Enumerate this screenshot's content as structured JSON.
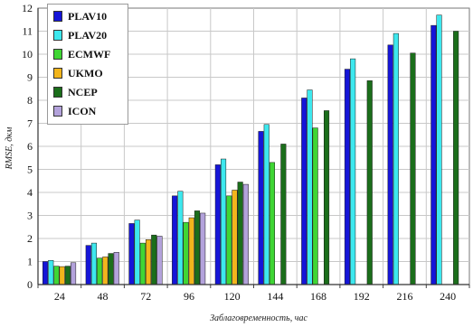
{
  "chart_data": {
    "type": "bar",
    "xlabel": "Заблаговременность, час",
    "ylabel": "RMSE, дкм",
    "ylim": [
      0,
      12
    ],
    "ytick_step": 1,
    "grid": true,
    "legend_position": "top-left",
    "categories": [
      "24",
      "48",
      "72",
      "96",
      "120",
      "144",
      "168",
      "192",
      "216",
      "240"
    ],
    "series": [
      {
        "name": "PLAV10",
        "color": "#1515d8",
        "values": [
          1.0,
          1.7,
          2.65,
          3.85,
          5.2,
          6.65,
          8.1,
          9.35,
          10.4,
          11.25
        ]
      },
      {
        "name": "PLAV20",
        "color": "#3de8ee",
        "values": [
          1.05,
          1.8,
          2.8,
          4.05,
          5.45,
          6.95,
          8.45,
          9.8,
          10.9,
          11.7
        ]
      },
      {
        "name": "ECMWF",
        "color": "#3fd634",
        "values": [
          0.8,
          1.15,
          1.8,
          2.7,
          3.85,
          5.3,
          6.8,
          null,
          null,
          null
        ]
      },
      {
        "name": "UKMO",
        "color": "#f2b51c",
        "values": [
          0.78,
          1.2,
          1.95,
          2.9,
          4.1,
          null,
          null,
          null,
          null,
          null
        ]
      },
      {
        "name": "NCEP",
        "color": "#1b6e1b",
        "values": [
          0.8,
          1.35,
          2.15,
          3.2,
          4.45,
          6.1,
          7.55,
          8.85,
          10.05,
          11.0
        ]
      },
      {
        "name": "ICON",
        "color": "#b3a2db",
        "values": [
          0.95,
          1.4,
          2.1,
          3.1,
          4.35,
          null,
          null,
          null,
          null,
          null
        ]
      }
    ]
  }
}
